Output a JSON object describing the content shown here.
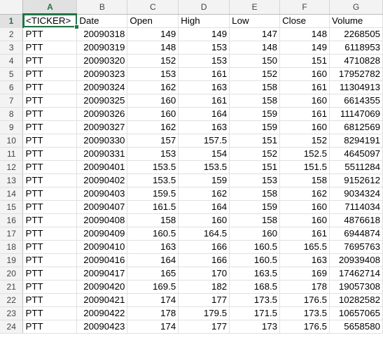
{
  "sheet": {
    "active_cell": "A1",
    "columns": [
      "A",
      "B",
      "C",
      "D",
      "E",
      "F",
      "G"
    ],
    "rows": [
      {
        "num": "1",
        "cells": [
          "<TICKER>",
          "Date",
          "Open",
          "High",
          "Low",
          "Close",
          "Volume"
        ]
      },
      {
        "num": "2",
        "cells": [
          "PTT",
          "20090318",
          "149",
          "149",
          "147",
          "148",
          "2268505"
        ]
      },
      {
        "num": "3",
        "cells": [
          "PTT",
          "20090319",
          "148",
          "153",
          "148",
          "149",
          "6118953"
        ]
      },
      {
        "num": "4",
        "cells": [
          "PTT",
          "20090320",
          "152",
          "153",
          "150",
          "151",
          "4710828"
        ]
      },
      {
        "num": "5",
        "cells": [
          "PTT",
          "20090323",
          "153",
          "161",
          "152",
          "160",
          "17952782"
        ]
      },
      {
        "num": "6",
        "cells": [
          "PTT",
          "20090324",
          "162",
          "163",
          "158",
          "161",
          "11304913"
        ]
      },
      {
        "num": "7",
        "cells": [
          "PTT",
          "20090325",
          "160",
          "161",
          "158",
          "160",
          "6614355"
        ]
      },
      {
        "num": "8",
        "cells": [
          "PTT",
          "20090326",
          "160",
          "164",
          "159",
          "161",
          "11147069"
        ]
      },
      {
        "num": "9",
        "cells": [
          "PTT",
          "20090327",
          "162",
          "163",
          "159",
          "160",
          "6812569"
        ]
      },
      {
        "num": "10",
        "cells": [
          "PTT",
          "20090330",
          "157",
          "157.5",
          "151",
          "152",
          "8294191"
        ]
      },
      {
        "num": "11",
        "cells": [
          "PTT",
          "20090331",
          "153",
          "154",
          "152",
          "152.5",
          "4645097"
        ]
      },
      {
        "num": "12",
        "cells": [
          "PTT",
          "20090401",
          "153.5",
          "153.5",
          "151",
          "151.5",
          "5511284"
        ]
      },
      {
        "num": "13",
        "cells": [
          "PTT",
          "20090402",
          "153.5",
          "159",
          "153",
          "158",
          "9152612"
        ]
      },
      {
        "num": "14",
        "cells": [
          "PTT",
          "20090403",
          "159.5",
          "162",
          "158",
          "162",
          "9034324"
        ]
      },
      {
        "num": "15",
        "cells": [
          "PTT",
          "20090407",
          "161.5",
          "164",
          "159",
          "160",
          "7114034"
        ]
      },
      {
        "num": "16",
        "cells": [
          "PTT",
          "20090408",
          "158",
          "160",
          "158",
          "160",
          "4876618"
        ]
      },
      {
        "num": "17",
        "cells": [
          "PTT",
          "20090409",
          "160.5",
          "164.5",
          "160",
          "161",
          "6944874"
        ]
      },
      {
        "num": "18",
        "cells": [
          "PTT",
          "20090410",
          "163",
          "166",
          "160.5",
          "165.5",
          "7695763"
        ]
      },
      {
        "num": "19",
        "cells": [
          "PTT",
          "20090416",
          "164",
          "166",
          "160.5",
          "163",
          "20939408"
        ]
      },
      {
        "num": "20",
        "cells": [
          "PTT",
          "20090417",
          "165",
          "170",
          "163.5",
          "169",
          "17462714"
        ]
      },
      {
        "num": "21",
        "cells": [
          "PTT",
          "20090420",
          "169.5",
          "182",
          "168.5",
          "178",
          "19057308"
        ]
      },
      {
        "num": "22",
        "cells": [
          "PTT",
          "20090421",
          "174",
          "177",
          "173.5",
          "176.5",
          "10282582"
        ]
      },
      {
        "num": "23",
        "cells": [
          "PTT",
          "20090422",
          "178",
          "179.5",
          "171.5",
          "173.5",
          "10657065"
        ]
      },
      {
        "num": "24",
        "cells": [
          "PTT",
          "20090423",
          "174",
          "177",
          "173",
          "176.5",
          "5658580"
        ]
      }
    ]
  },
  "colors": {
    "accent": "#217346",
    "header_bg": "#f3f3f3",
    "gridline": "#e0e0e0"
  }
}
